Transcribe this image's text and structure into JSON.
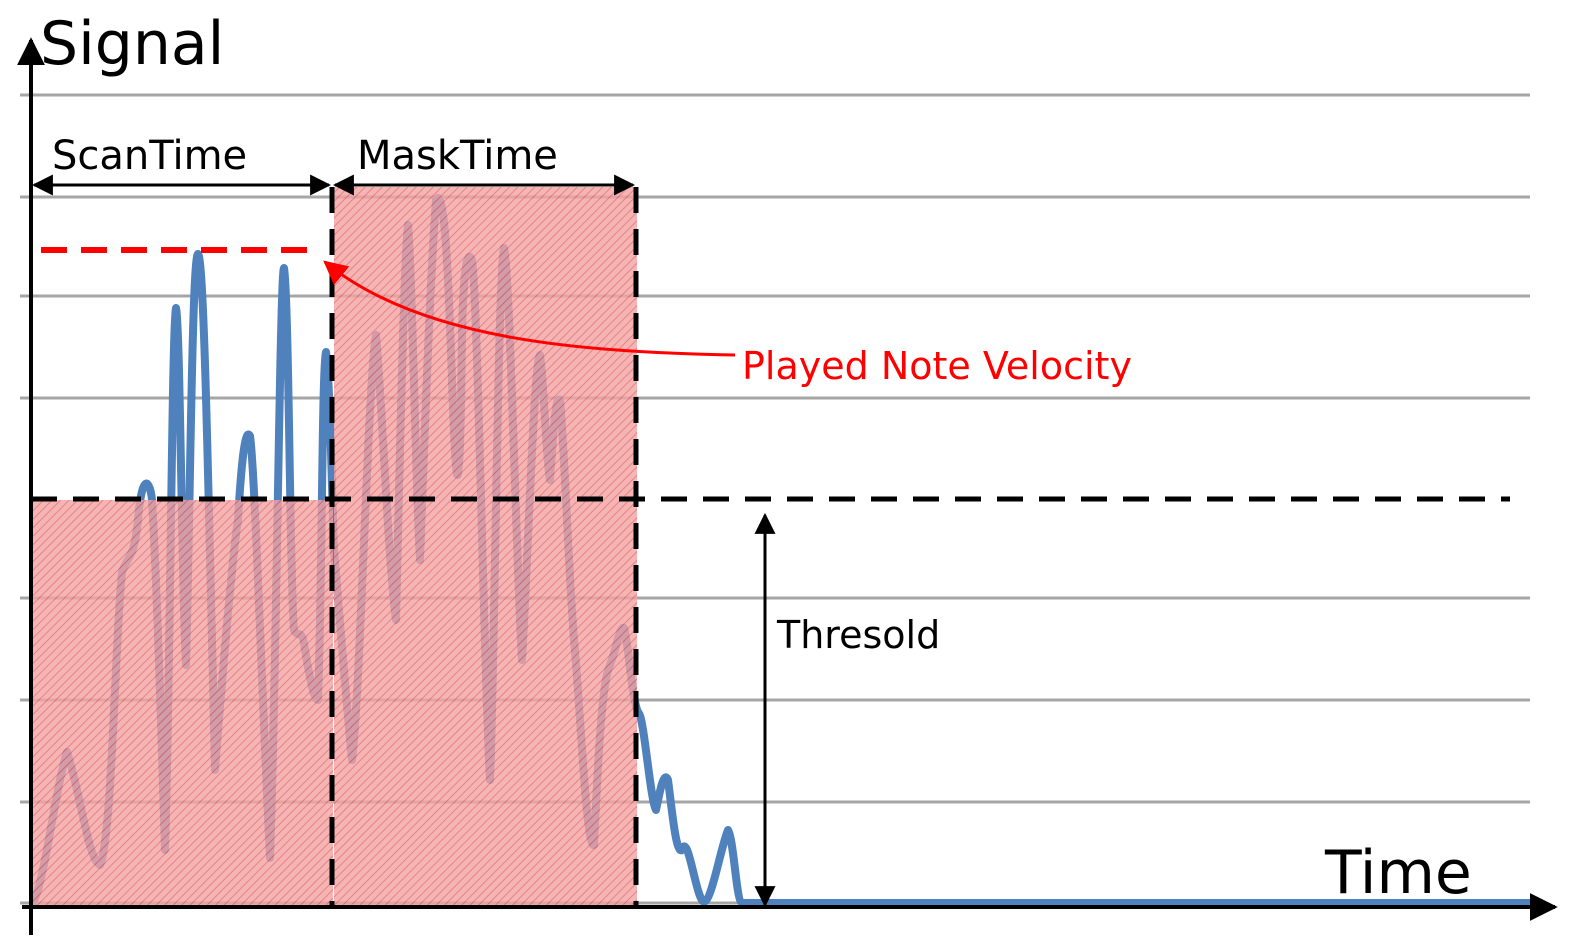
{
  "axes": {
    "y_title": "Signal",
    "x_title": "Time"
  },
  "annotations": {
    "scan_time": "ScanTime",
    "mask_time": "MaskTime",
    "velocity": "Played Note Velocity",
    "threshold": "Thresold"
  },
  "colors": {
    "signal": "#4f81bd",
    "velocity": "#ff0000",
    "region_fill": "#f08080",
    "grid": "#a6a6a6",
    "axis": "#000000"
  }
}
